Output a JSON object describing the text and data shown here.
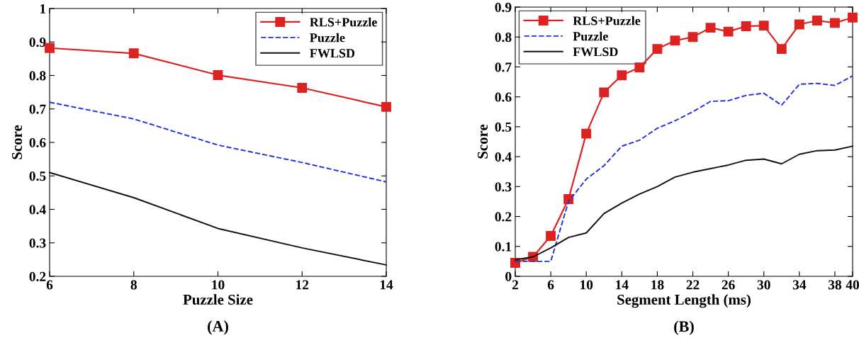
{
  "chart_data": [
    {
      "type": "line",
      "xlabel": "Puzzle Size",
      "ylabel": "Score",
      "annotations": [
        "(A)"
      ],
      "x": [
        6,
        8,
        10,
        12,
        14
      ],
      "xlim": [
        6,
        14
      ],
      "xticks": [
        6,
        8,
        10,
        12,
        14
      ],
      "ylim": [
        0.2,
        1
      ],
      "yticks": [
        0.2,
        0.3,
        0.4,
        0.5,
        0.6,
        0.7,
        0.8,
        0.9,
        1
      ],
      "legend": "top right",
      "grid": false,
      "series": [
        {
          "name": "RLS+Puzzle",
          "color": "#dd2222",
          "marker": "square",
          "line_style": "solid",
          "values": [
            0.882,
            0.866,
            0.801,
            0.763,
            0.706
          ]
        },
        {
          "name": "Puzzle",
          "color": "#2233dd",
          "marker": "none",
          "line_style": "dashed",
          "values": [
            0.72,
            0.67,
            0.592,
            0.54,
            0.482
          ]
        },
        {
          "name": "FWLSD",
          "color": "#111111",
          "marker": "none",
          "line_style": "solid",
          "values": [
            0.51,
            0.435,
            0.343,
            0.285,
            0.234
          ]
        }
      ]
    },
    {
      "type": "line",
      "xlabel": "Segment Length (ms)",
      "ylabel": "Score",
      "annotations": [
        "(B)"
      ],
      "x": [
        2,
        4,
        6,
        8,
        10,
        12,
        14,
        16,
        18,
        20,
        22,
        24,
        26,
        28,
        30,
        32,
        34,
        36,
        38,
        40
      ],
      "xlim": [
        2,
        40
      ],
      "xticks": [
        2,
        6,
        10,
        14,
        18,
        22,
        26,
        30,
        34,
        38,
        40
      ],
      "ylim": [
        0,
        0.9
      ],
      "yticks": [
        0,
        0.1,
        0.2,
        0.3,
        0.4,
        0.5,
        0.6,
        0.7,
        0.8,
        0.9
      ],
      "legend": "top left",
      "grid": false,
      "series": [
        {
          "name": "RLS+Puzzle",
          "color": "#dd2222",
          "marker": "square",
          "line_style": "solid",
          "values": [
            0.045,
            0.065,
            0.135,
            0.258,
            0.477,
            0.615,
            0.672,
            0.698,
            0.76,
            0.788,
            0.8,
            0.831,
            0.818,
            0.836,
            0.838,
            0.76,
            0.842,
            0.855,
            0.847,
            0.865
          ]
        },
        {
          "name": "Puzzle",
          "color": "#2233dd",
          "marker": "none",
          "line_style": "dashed",
          "values": [
            0.05,
            0.05,
            0.05,
            0.25,
            0.325,
            0.37,
            0.435,
            0.455,
            0.495,
            0.52,
            0.55,
            0.585,
            0.587,
            0.605,
            0.612,
            0.572,
            0.642,
            0.645,
            0.638,
            0.67
          ]
        },
        {
          "name": "FWLSD",
          "color": "#111111",
          "marker": "none",
          "line_style": "solid",
          "values": [
            0.055,
            0.065,
            0.095,
            0.13,
            0.145,
            0.21,
            0.245,
            0.275,
            0.3,
            0.332,
            0.348,
            0.36,
            0.372,
            0.388,
            0.392,
            0.376,
            0.408,
            0.42,
            0.422,
            0.435
          ]
        }
      ]
    }
  ]
}
